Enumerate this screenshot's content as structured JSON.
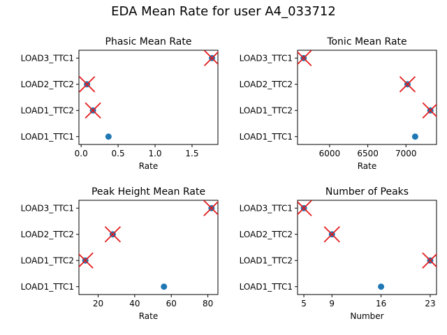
{
  "figure": {
    "suptitle": "EDA Mean Rate for user A4_033712"
  },
  "colors": {
    "point": "#1f77b4",
    "marker_x": "#e41a1c",
    "axes": "#000000"
  },
  "chart_data": [
    {
      "type": "scatter",
      "title": "Phasic Mean Rate",
      "xlabel": "Rate",
      "ylabel": "",
      "categories": [
        "LOAD1_TTC1",
        "LOAD1_TTC2",
        "LOAD2_TTC2",
        "LOAD3_TTC1"
      ],
      "values": [
        0.37,
        0.16,
        0.08,
        1.77
      ],
      "flagged": [
        false,
        true,
        true,
        true
      ],
      "xlim": [
        -0.03,
        1.85
      ],
      "xticks": [
        0.0,
        0.5,
        1.0,
        1.5
      ],
      "xtick_labels": [
        "0.0",
        "0.5",
        "1.0",
        "1.5"
      ],
      "grid": false
    },
    {
      "type": "scatter",
      "title": "Tonic Mean Rate",
      "xlabel": "Rate",
      "ylabel": "",
      "categories": [
        "LOAD1_TTC1",
        "LOAD1_TTC2",
        "LOAD2_TTC2",
        "LOAD3_TTC1"
      ],
      "values": [
        7120,
        7320,
        7020,
        5660
      ],
      "flagged": [
        false,
        true,
        true,
        true
      ],
      "xlim": [
        5580,
        7400
      ],
      "xticks": [
        6000,
        6500,
        7000
      ],
      "xtick_labels": [
        "6000",
        "6500",
        "7000"
      ],
      "grid": false
    },
    {
      "type": "scatter",
      "title": "Peak Height Mean Rate",
      "xlabel": "Rate",
      "ylabel": "",
      "categories": [
        "LOAD1_TTC1",
        "LOAD1_TTC2",
        "LOAD2_TTC2",
        "LOAD3_TTC1"
      ],
      "values": [
        56,
        13,
        28,
        82
      ],
      "flagged": [
        false,
        true,
        true,
        true
      ],
      "xlim": [
        9.5,
        85.5
      ],
      "xticks": [
        20,
        40,
        60,
        80
      ],
      "xtick_labels": [
        "20",
        "40",
        "60",
        "80"
      ],
      "grid": false
    },
    {
      "type": "scatter",
      "title": "Number of Peaks",
      "xlabel": "Number",
      "ylabel": "",
      "categories": [
        "LOAD1_TTC1",
        "LOAD1_TTC2",
        "LOAD2_TTC2",
        "LOAD3_TTC1"
      ],
      "values": [
        16,
        23,
        9,
        5
      ],
      "flagged": [
        false,
        true,
        true,
        true
      ],
      "xlim": [
        4.1,
        23.9
      ],
      "xticks": [
        5,
        9,
        16,
        23
      ],
      "xtick_labels": [
        "5",
        "9",
        "16",
        "23"
      ],
      "grid": false
    }
  ]
}
